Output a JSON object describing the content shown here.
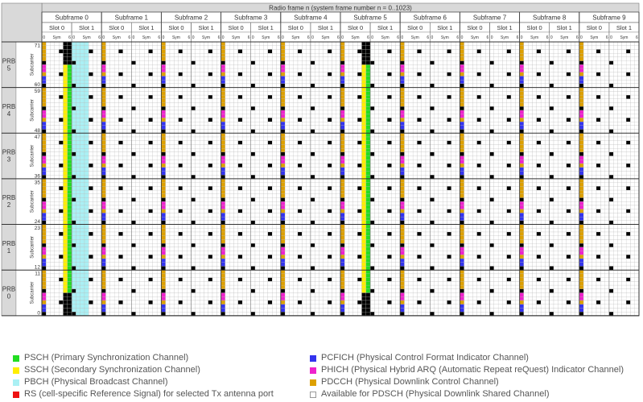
{
  "title": "Radio frame n (system frame number n = 0..1023)",
  "subframes": [
    "Subframe 0",
    "Subframe 1",
    "Subframe 2",
    "Subframe 3",
    "Subframe 4",
    "Subframe 5",
    "Subframe 6",
    "Subframe 7",
    "Subframe 8",
    "Subframe 9"
  ],
  "slot_labels": [
    "Slot 0",
    "Slot 1"
  ],
  "sym_label": "Sym",
  "sym_first": "0",
  "sym_last": "6",
  "subcarrier_label": "Subcarrier",
  "prbs": [
    {
      "name": "PRB",
      "num": "5",
      "top": "71",
      "bottom": "60"
    },
    {
      "name": "PRB",
      "num": "4",
      "top": "59",
      "bottom": "48"
    },
    {
      "name": "PRB",
      "num": "3",
      "top": "47",
      "bottom": "36"
    },
    {
      "name": "PRB",
      "num": "2",
      "top": "35",
      "bottom": "24"
    },
    {
      "name": "PRB",
      "num": "1",
      "top": "23",
      "bottom": "12"
    },
    {
      "name": "PRB",
      "num": "0",
      "top": "11",
      "bottom": "0"
    }
  ],
  "colors": {
    "psch": "#22dd22",
    "ssch": "#ffee00",
    "pbch": "#aaf0f4",
    "rs": "#000000",
    "pcfich": "#3333ee",
    "phich": "#ee22cc",
    "pdcch": "#dda000",
    "pdsch": "#ffffff",
    "header": "#d9d9d9",
    "grid": "#999999"
  },
  "legend": {
    "left": [
      {
        "key": "psch",
        "text": "PSCH (Primary Synchronization Channel)"
      },
      {
        "key": "ssch",
        "text": "SSCH (Secondary Synchronization Channel)"
      },
      {
        "key": "pbch",
        "text": "PBCH (Physical Broadcast Channel)"
      },
      {
        "key": "rs_legend",
        "text": "RS (cell-specific Reference Signal) for selected Tx antenna port"
      }
    ],
    "right": [
      {
        "key": "pcfich",
        "text": "PCFICH (Physical Control Format Indicator Channel)"
      },
      {
        "key": "phich",
        "text": "PHICH (Physical Hybrid ARQ (Automatic Repeat reQuest) Indicator Channel)"
      },
      {
        "key": "pdcch",
        "text": "PDCCH (Physical Downlink Control Channel)"
      },
      {
        "key": "pdsch",
        "text": "Available for PDSCH (Physical Downlink Shared Channel)"
      }
    ],
    "rs_legend_color": "#ee1111"
  }
}
